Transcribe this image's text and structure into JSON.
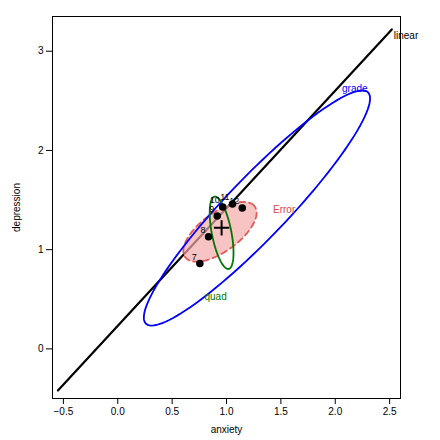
{
  "chart_data": {
    "type": "scatter",
    "xlabel": "anxiety",
    "ylabel": "depression",
    "xlim": [
      -0.6,
      2.6
    ],
    "ylim": [
      -0.5,
      3.35
    ],
    "xticks": [
      {
        "value": -0.5,
        "label": "−0.5"
      },
      {
        "value": 0.0,
        "label": "0.0"
      },
      {
        "value": 0.5,
        "label": "0.5"
      },
      {
        "value": 1.0,
        "label": "1.0"
      },
      {
        "value": 1.5,
        "label": "1.5"
      },
      {
        "value": 2.0,
        "label": "2.0"
      },
      {
        "value": 2.5,
        "label": "2.5"
      }
    ],
    "yticks": [
      0,
      1,
      2,
      3
    ],
    "x": [
      0.755,
      0.835,
      0.915,
      0.965,
      1.055,
      1.145
    ],
    "values": [
      0.86,
      1.13,
      1.34,
      1.43,
      1.46,
      1.42
    ],
    "labels": [
      "7",
      "8",
      "9",
      "10",
      "11",
      "12"
    ],
    "color": "black",
    "marker": "circle",
    "mean": {
      "x": 0.955,
      "y": 1.22,
      "marker": "plus",
      "color": "black"
    },
    "lines": [
      {
        "name": "linear",
        "x": [
          -0.55,
          2.52
        ],
        "y": [
          -0.42,
          3.22
        ],
        "color": "black",
        "line_style": "solid"
      }
    ],
    "ellipses": [
      {
        "name": "Error",
        "x": 0.94,
        "y": 1.18,
        "width": 0.82,
        "height": 0.38,
        "angle": 40,
        "color": "#dd4444",
        "fill_color": "#f4aaaa",
        "line_style": "dashed",
        "label_x": 1.53,
        "label_y": 1.4
      },
      {
        "name": "grade",
        "x": 1.28,
        "y": 1.42,
        "width": 3.1,
        "height": 0.58,
        "angle": 49,
        "color": "blue",
        "line_style": "solid",
        "label_x": 2.18,
        "label_y": 2.62
      },
      {
        "name": "quad",
        "x": 0.955,
        "y": 1.17,
        "width": 0.18,
        "height": 0.74,
        "angle": 10,
        "color": "#007700",
        "line_style": "solid",
        "label_x": 0.9,
        "label_y": 0.52
      }
    ]
  }
}
